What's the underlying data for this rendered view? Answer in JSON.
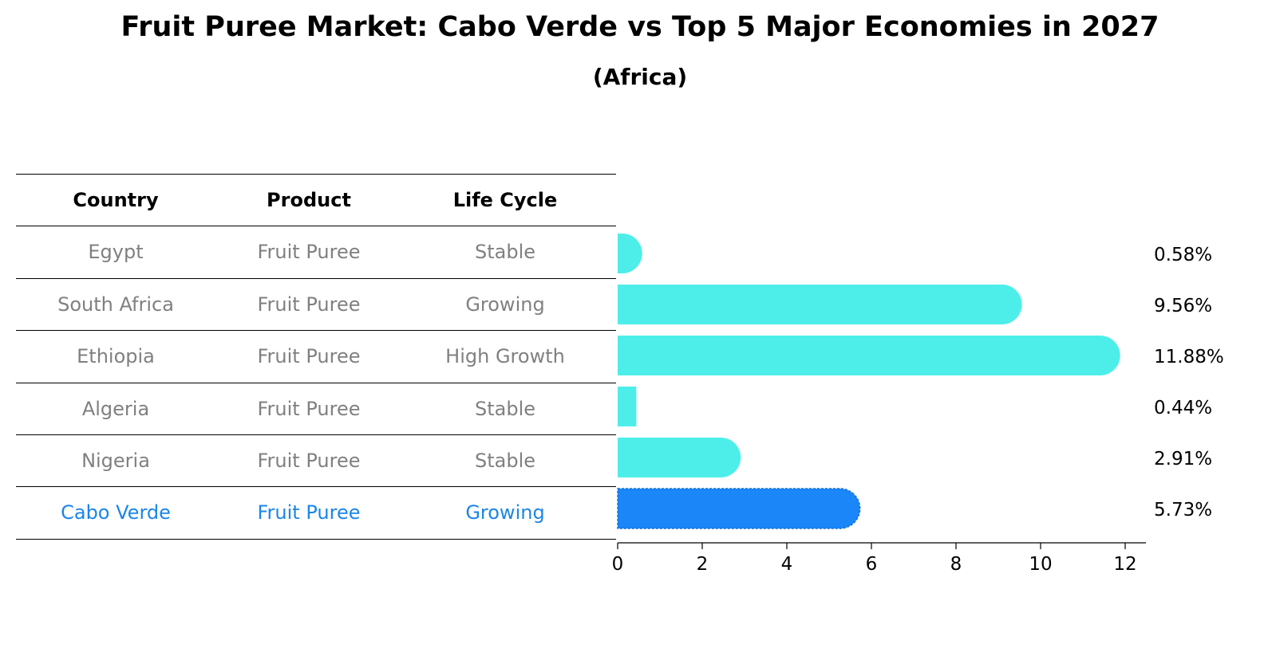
{
  "title": "Fruit Puree Market: Cabo Verde vs Top 5 Major Economies in 2027",
  "subtitle": "(Africa)",
  "table": {
    "headers": [
      "Country",
      "Product",
      "Life Cycle"
    ],
    "rows": [
      {
        "country": "Egypt",
        "product": "Fruit Puree",
        "life_cycle": "Stable"
      },
      {
        "country": "South Africa",
        "product": "Fruit Puree",
        "life_cycle": "Growing"
      },
      {
        "country": "Ethiopia",
        "product": "Fruit Puree",
        "life_cycle": "High Growth"
      },
      {
        "country": "Algeria",
        "product": "Fruit Puree",
        "life_cycle": "Stable"
      },
      {
        "country": "Nigeria",
        "product": "Fruit Puree",
        "life_cycle": "Stable"
      },
      {
        "country": "Cabo Verde",
        "product": "Fruit Puree",
        "life_cycle": "Growing"
      }
    ]
  },
  "chart_data": {
    "type": "bar",
    "orientation": "horizontal",
    "categories": [
      "Egypt",
      "South Africa",
      "Ethiopia",
      "Algeria",
      "Nigeria",
      "Cabo Verde"
    ],
    "values": [
      0.58,
      9.56,
      11.88,
      0.44,
      2.91,
      5.73
    ],
    "value_labels": [
      "0.58%",
      "9.56%",
      "11.88%",
      "0.44%",
      "2.91%",
      "5.73%"
    ],
    "highlight": "Cabo Verde",
    "xlim": [
      0,
      12.5
    ],
    "xticks": [
      0,
      2,
      4,
      6,
      8,
      10,
      12
    ],
    "grid": false,
    "colors": {
      "default": "#4deeea",
      "highlight": "#1a86f8",
      "muted_text": "#808080",
      "highlight_text": "#1a86e8"
    }
  }
}
